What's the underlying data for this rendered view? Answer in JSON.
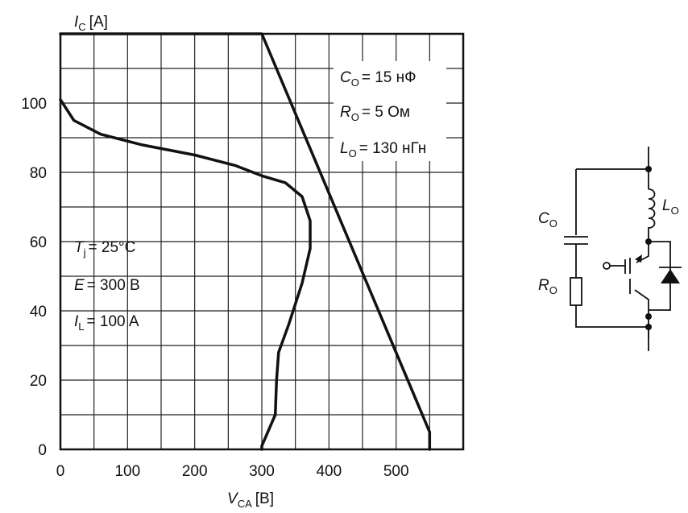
{
  "chart_data": {
    "type": "line",
    "x_axis": {
      "symbol": "V",
      "subscript": "CA",
      "unit": "[B]",
      "range": [
        0,
        600
      ],
      "ticks": [
        "0",
        "100",
        "200",
        "300",
        "400",
        "500"
      ]
    },
    "y_axis": {
      "symbol": "I",
      "subscript": "C",
      "unit": "[A]",
      "range": [
        0,
        120
      ],
      "ticks": [
        "0",
        "20",
        "40",
        "60",
        "80",
        "100"
      ]
    },
    "grid": true,
    "series": [
      {
        "role": "limit-boundary",
        "points": [
          [
            0,
            120
          ],
          [
            300,
            120
          ],
          [
            550,
            5
          ],
          [
            550,
            0
          ]
        ]
      },
      {
        "role": "switching-trajectory",
        "points": [
          [
            0,
            101
          ],
          [
            20,
            95
          ],
          [
            60,
            91
          ],
          [
            120,
            88
          ],
          [
            200,
            85
          ],
          [
            260,
            82
          ],
          [
            300,
            79
          ],
          [
            335,
            77
          ],
          [
            360,
            73
          ],
          [
            372,
            66
          ],
          [
            372,
            58
          ],
          [
            360,
            48
          ],
          [
            340,
            36
          ],
          [
            325,
            28
          ],
          [
            322,
            20
          ],
          [
            320,
            10
          ],
          [
            300,
            1
          ],
          [
            300,
            0
          ]
        ]
      }
    ],
    "annotations": {
      "conditions": [
        {
          "symbol": "T",
          "sub": "j",
          "value": "= 25°C"
        },
        {
          "symbol": "E",
          "sub": "",
          "value": "= 300 B"
        },
        {
          "symbol": "I",
          "sub": "L",
          "value": "= 100 A"
        }
      ],
      "snubber_params": [
        {
          "symbol": "C",
          "sub": "O",
          "value": "= 15 нФ"
        },
        {
          "symbol": "R",
          "sub": "O",
          "value": "= 5 Ом"
        },
        {
          "symbol": "L",
          "sub": "O",
          "value": "= 130 нГн"
        }
      ]
    }
  },
  "circuit": {
    "capacitor_label": {
      "symbol": "C",
      "sub": "O"
    },
    "resistor_label": {
      "symbol": "R",
      "sub": "O"
    },
    "inductor_label": {
      "symbol": "L",
      "sub": "O"
    }
  }
}
